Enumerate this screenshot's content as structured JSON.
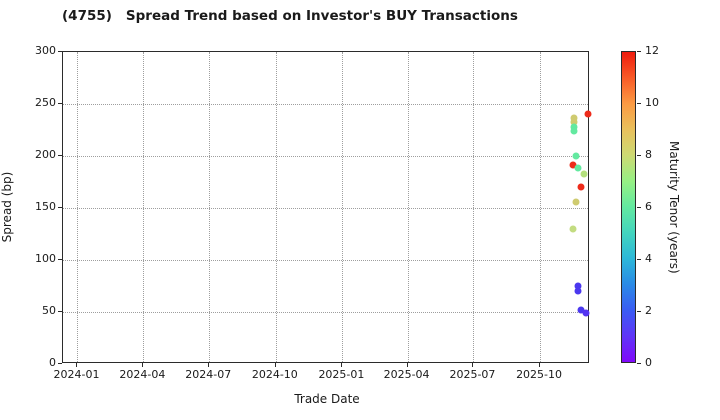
{
  "title": {
    "code": "(4755)",
    "text": "Spread Trend based on Investor's BUY Transactions"
  },
  "chart_data": {
    "type": "scatter",
    "title": "(4755)   Spread Trend based on Investor's BUY Transactions",
    "xlabel": "Trade Date",
    "ylabel": "Spread (bp)",
    "x_domain": [
      "2023-12-12",
      "2025-12-09"
    ],
    "y_domain": [
      0,
      300
    ],
    "grid": "dotted",
    "x_ticks": [
      {
        "date": "2024-01-01",
        "label": "2024-01"
      },
      {
        "date": "2024-04-01",
        "label": "2024-04"
      },
      {
        "date": "2024-07-01",
        "label": "2024-07"
      },
      {
        "date": "2024-10-01",
        "label": "2024-10"
      },
      {
        "date": "2025-01-01",
        "label": "2025-01"
      },
      {
        "date": "2025-04-01",
        "label": "2025-04"
      },
      {
        "date": "2025-07-01",
        "label": "2025-07"
      },
      {
        "date": "2025-10-01",
        "label": "2025-10"
      }
    ],
    "y_ticks": [
      0,
      50,
      100,
      150,
      200,
      250,
      300
    ],
    "points": [
      {
        "date": "2025-12-06",
        "spread_bp": 240,
        "tenor_years": 12,
        "color": "#ee2b1a"
      },
      {
        "date": "2025-11-17",
        "spread_bp": 237,
        "tenor_years": 8,
        "color": "#cfcb70"
      },
      {
        "date": "2025-11-17",
        "spread_bp": 233,
        "tenor_years": 8,
        "color": "#cfcb70"
      },
      {
        "date": "2025-11-17",
        "spread_bp": 228,
        "tenor_years": 6,
        "color": "#63e9a0"
      },
      {
        "date": "2025-11-17",
        "spread_bp": 224,
        "tenor_years": 6,
        "color": "#63e9a0"
      },
      {
        "date": "2025-11-20",
        "spread_bp": 200,
        "tenor_years": 6,
        "color": "#63e9a0"
      },
      {
        "date": "2025-11-15",
        "spread_bp": 191,
        "tenor_years": 12,
        "color": "#ee2b1a"
      },
      {
        "date": "2025-11-22",
        "spread_bp": 188,
        "tenor_years": 6,
        "color": "#63e9a0"
      },
      {
        "date": "2025-12-01",
        "spread_bp": 183,
        "tenor_years": 7,
        "color": "#b4e07c"
      },
      {
        "date": "2025-11-27",
        "spread_bp": 170,
        "tenor_years": 12,
        "color": "#ee2b1a"
      },
      {
        "date": "2025-11-19",
        "spread_bp": 156,
        "tenor_years": 8,
        "color": "#cfcb70"
      },
      {
        "date": "2025-11-16",
        "spread_bp": 130,
        "tenor_years": 7.5,
        "color": "#c3dc81"
      },
      {
        "date": "2025-11-23",
        "spread_bp": 75,
        "tenor_years": 1,
        "color": "#4b38ef"
      },
      {
        "date": "2025-11-23",
        "spread_bp": 70,
        "tenor_years": 1,
        "color": "#4b38ef"
      },
      {
        "date": "2025-11-27",
        "spread_bp": 52,
        "tenor_years": 1,
        "color": "#4b38ef"
      },
      {
        "date": "2025-12-04",
        "spread_bp": 49,
        "tenor_years": 0.8,
        "color": "#5434f2"
      }
    ],
    "colorbar": {
      "label": "Maturity Tenor (years)",
      "min": 0,
      "max": 12,
      "ticks": [
        0,
        2,
        4,
        6,
        8,
        10,
        12
      ],
      "gradient": [
        {
          "value": 0,
          "color": "#8009fa"
        },
        {
          "value": 1,
          "color": "#5f35f8"
        },
        {
          "value": 2,
          "color": "#3a5cf3"
        },
        {
          "value": 3,
          "color": "#2a8ae6"
        },
        {
          "value": 4,
          "color": "#2cb7d8"
        },
        {
          "value": 5,
          "color": "#43d5be"
        },
        {
          "value": 6,
          "color": "#63e9a0"
        },
        {
          "value": 7,
          "color": "#96f084"
        },
        {
          "value": 8,
          "color": "#cdd973"
        },
        {
          "value": 9,
          "color": "#e9c05c"
        },
        {
          "value": 10,
          "color": "#fb9a43"
        },
        {
          "value": 11,
          "color": "#f85a27"
        },
        {
          "value": 12,
          "color": "#ee1c0e"
        }
      ]
    }
  }
}
